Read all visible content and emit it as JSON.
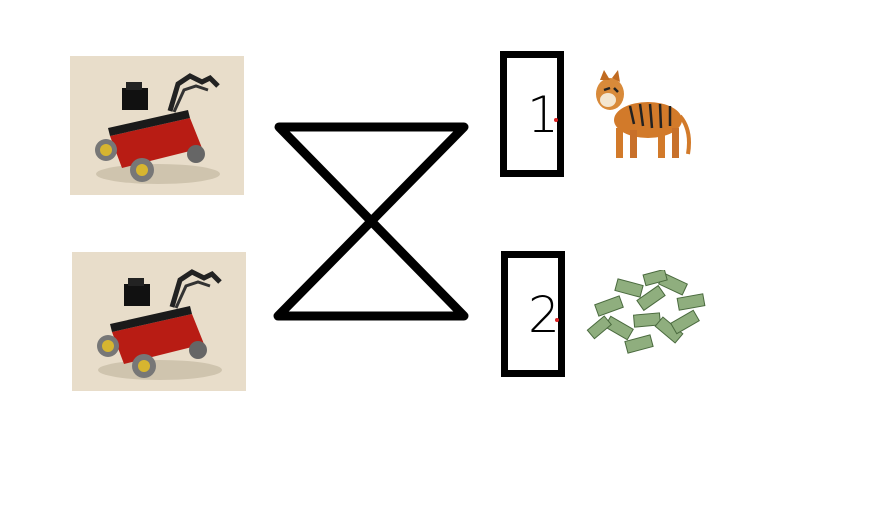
{
  "diagram": {
    "left_items": [
      {
        "depicts": "robot"
      },
      {
        "depicts": "robot"
      }
    ],
    "doors": [
      {
        "label": "1",
        "dot_color": "#dd2222",
        "reward": "tiger-icon"
      },
      {
        "label": "2",
        "dot_color": "#dd2222",
        "reward": "money-icon"
      }
    ],
    "connector": "crossed-lines",
    "colors": {
      "line": "#000000",
      "robot_body": "#b81c14",
      "tiger": "#d27a2a",
      "money": "#7a9a6a"
    }
  }
}
